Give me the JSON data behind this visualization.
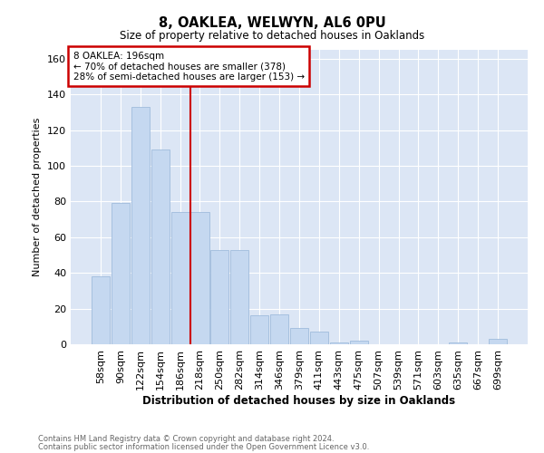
{
  "title1": "8, OAKLEA, WELWYN, AL6 0PU",
  "title2": "Size of property relative to detached houses in Oaklands",
  "xlabel": "Distribution of detached houses by size in Oaklands",
  "ylabel": "Number of detached properties",
  "categories": [
    "58sqm",
    "90sqm",
    "122sqm",
    "154sqm",
    "186sqm",
    "218sqm",
    "250sqm",
    "282sqm",
    "314sqm",
    "346sqm",
    "379sqm",
    "411sqm",
    "443sqm",
    "475sqm",
    "507sqm",
    "539sqm",
    "571sqm",
    "603sqm",
    "635sqm",
    "667sqm",
    "699sqm"
  ],
  "values": [
    38,
    79,
    133,
    109,
    74,
    74,
    53,
    53,
    16,
    17,
    9,
    7,
    1,
    2,
    0,
    0,
    0,
    0,
    1,
    0,
    3
  ],
  "bar_color": "#c5d8f0",
  "bar_edge_color": "#a0bcdc",
  "plot_bg_color": "#dce6f5",
  "fig_bg_color": "#ffffff",
  "grid_color": "#ffffff",
  "vline_x": 4.5,
  "vline_color": "#cc0000",
  "vline_label": "8 OAKLEA: 196sqm",
  "annotation_line1": "← 70% of detached houses are smaller (378)",
  "annotation_line2": "28% of semi-detached houses are larger (153) →",
  "annotation_box_color": "#cc0000",
  "ylim": [
    0,
    165
  ],
  "footer1": "Contains HM Land Registry data © Crown copyright and database right 2024.",
  "footer2": "Contains public sector information licensed under the Open Government Licence v3.0."
}
